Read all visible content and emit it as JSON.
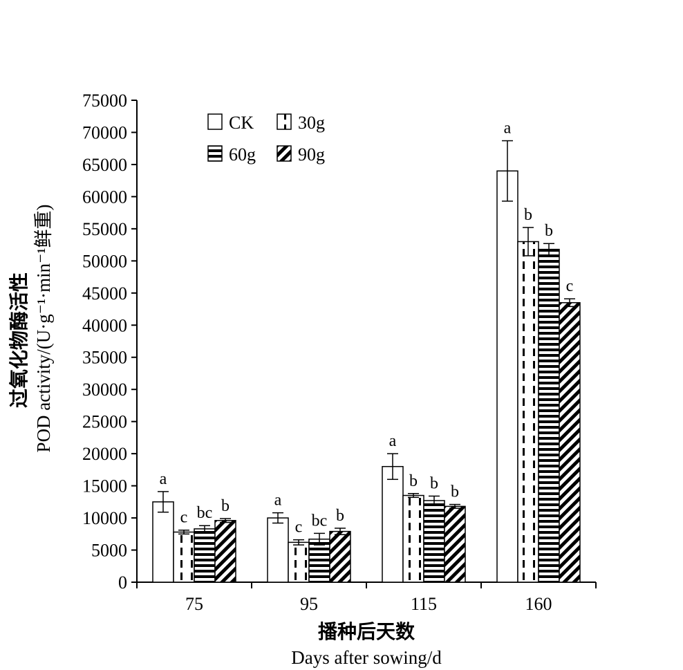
{
  "chart_data": {
    "type": "bar",
    "categories": [
      "75",
      "95",
      "115",
      "160"
    ],
    "series": [
      {
        "name": "CK",
        "values": [
          12500,
          10000,
          18000,
          64000
        ],
        "errors": [
          1600,
          800,
          2000,
          4700
        ],
        "letters": [
          "a",
          "a",
          "a",
          "a"
        ],
        "pattern": "white"
      },
      {
        "name": "30g",
        "values": [
          7800,
          6200,
          13500,
          53000
        ],
        "errors": [
          300,
          400,
          300,
          2200
        ],
        "letters": [
          "c",
          "c",
          "b",
          "b"
        ],
        "pattern": "dashed-vertical"
      },
      {
        "name": "60g",
        "values": [
          8300,
          6700,
          12700,
          51800
        ],
        "errors": [
          500,
          900,
          700,
          900
        ],
        "letters": [
          "bc",
          "bc",
          "b",
          "b"
        ],
        "pattern": "horizontal-stripes"
      },
      {
        "name": "90g",
        "values": [
          9600,
          7900,
          11800,
          43500
        ],
        "errors": [
          300,
          500,
          300,
          600
        ],
        "letters": [
          "b",
          "b",
          "b",
          "c"
        ],
        "pattern": "diagonal-stripes"
      }
    ],
    "ylim": [
      0,
      75000
    ],
    "yticks": [
      0,
      5000,
      10000,
      15000,
      20000,
      25000,
      30000,
      35000,
      40000,
      45000,
      50000,
      55000,
      60000,
      65000,
      70000,
      75000
    ],
    "ylabel_cn": "过氧化物酶活性",
    "ylabel_en": "POD activity/(U·g⁻¹·min⁻¹鲜重)",
    "xlabel_cn": "播种后天数",
    "xlabel_en": "Days after sowing/d",
    "legend_placement": "top-left",
    "grid": false
  }
}
